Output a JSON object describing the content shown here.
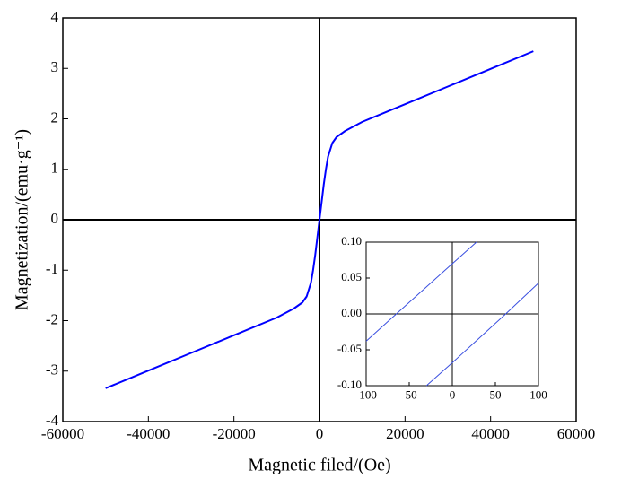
{
  "chart_data": [
    {
      "type": "line",
      "xlabel": "Magnetic filed/(Oe)",
      "ylabel": "Magnetization/(emu·g⁻¹)",
      "xlim": [
        -60000,
        60000
      ],
      "ylim": [
        -4,
        4
      ],
      "xticks": [
        -60000,
        -40000,
        -20000,
        0,
        20000,
        40000,
        60000
      ],
      "yticks": [
        -4,
        -3,
        -2,
        -1,
        0,
        1,
        2,
        3,
        4
      ],
      "series": [
        {
          "color": "#0000ff",
          "x": [
            -50000,
            -40000,
            -30000,
            -20000,
            -10000,
            -6000,
            -4000,
            -3000,
            -2000,
            -1500,
            -1000,
            -500,
            0,
            500,
            1000,
            1500,
            2000,
            3000,
            4000,
            6000,
            10000,
            20000,
            30000,
            40000,
            50000
          ],
          "values": [
            -3.34,
            -2.99,
            -2.64,
            -2.29,
            -1.94,
            -1.76,
            -1.64,
            -1.52,
            -1.25,
            -1.0,
            -0.7,
            -0.35,
            0,
            0.35,
            0.7,
            1.0,
            1.25,
            1.52,
            1.64,
            1.76,
            1.94,
            2.29,
            2.64,
            2.99,
            3.34
          ]
        }
      ]
    },
    {
      "type": "line",
      "xlim": [
        -100,
        100
      ],
      "ylim": [
        -0.1,
        0.1
      ],
      "xticks": [
        -100,
        -50,
        0,
        50,
        100
      ],
      "yticks": [
        {
          "value": -0.1,
          "label": "-0.10"
        },
        -0.05,
        {
          "value": 0,
          "label": "0.00"
        },
        0.05,
        {
          "value": 0.1,
          "label": "0.10"
        }
      ],
      "series": [
        {
          "color": "#3a4fe0",
          "x": [
            -100,
            -65,
            0,
            28
          ],
          "values": [
            -0.038,
            0,
            0.07,
            0.1
          ]
        },
        {
          "color": "#3a4fe0",
          "x": [
            -30,
            0,
            62,
            100
          ],
          "values": [
            -0.1,
            -0.068,
            0,
            0.043
          ]
        }
      ]
    }
  ]
}
